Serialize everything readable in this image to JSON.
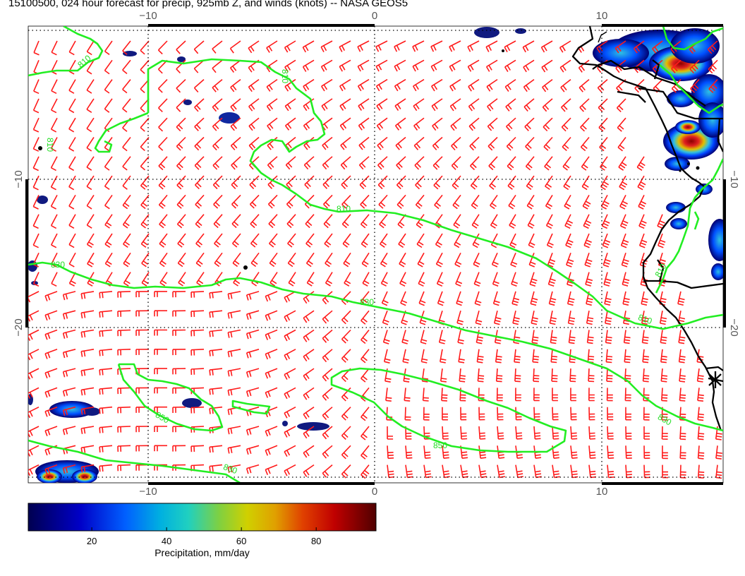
{
  "title": "15100500, 024 hour forecast for precip, 925mb Z, and winds (knots) -- NASA GEOS5",
  "map": {
    "lon_range": [
      -16,
      15.5
    ],
    "lat_range": [
      -29.5,
      0.2
    ],
    "lon_ticks": [
      -10,
      0,
      10
    ],
    "lat_ticks": [
      -10,
      -20
    ],
    "lon_tick_labels": [
      "−10",
      "0",
      "10"
    ],
    "lat_tick_labels": [
      "−10",
      "−20"
    ],
    "grid": "dotted",
    "wind_barb_color": "#ff1a1a",
    "contour_color": "#22ee22",
    "coastline_color": "#000000"
  },
  "contour_labels": [
    "810",
    "810",
    "810",
    "810",
    "830",
    "830",
    "810",
    "850",
    "850",
    "830",
    "830",
    "810"
  ],
  "colorbar": {
    "title": "Precipitation, mm/day",
    "ticks": [
      "20",
      "40",
      "60",
      "80"
    ],
    "tick_values": [
      20,
      40,
      60,
      80
    ],
    "range": [
      3,
      96
    ],
    "colors": [
      "#000060",
      "#0000d0",
      "#0050ff",
      "#00b0e0",
      "#20d0c0",
      "#60d060",
      "#c8d000",
      "#e0a000",
      "#e04000",
      "#c00000",
      "#600000"
    ]
  }
}
